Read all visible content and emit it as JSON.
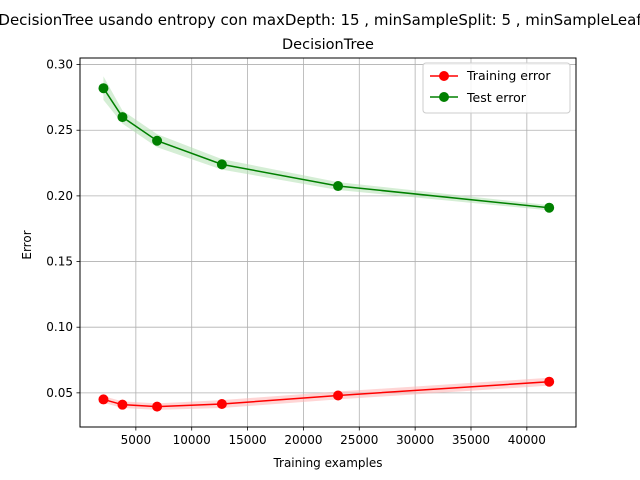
{
  "chart_data": {
    "type": "line",
    "suptitle": "DecisionTree usando entropy con maxDepth: 15 , minSampleSplit: 5 , minSampleLeaf",
    "title": "DecisionTree",
    "xlabel": "Training examples",
    "ylabel": "Error",
    "xlim": [
      0,
      44400
    ],
    "ylim": [
      0.024,
      0.305
    ],
    "xticks": [
      5000,
      10000,
      15000,
      20000,
      25000,
      30000,
      35000,
      40000
    ],
    "xtick_labels": [
      "5000",
      "10000",
      "15000",
      "20000",
      "25000",
      "30000",
      "35000",
      "40000"
    ],
    "yticks": [
      0.05,
      0.1,
      0.15,
      0.2,
      0.25,
      0.3
    ],
    "ytick_labels": [
      "0.05",
      "0.10",
      "0.15",
      "0.20",
      "0.25",
      "0.30"
    ],
    "grid": true,
    "legend_position": "top-right",
    "x": [
      2100,
      3800,
      6900,
      12700,
      23100,
      42000
    ],
    "series": [
      {
        "name": "Training error",
        "color": "#ff0000",
        "band_color": "#ffb3b3",
        "values": [
          0.045,
          0.041,
          0.0395,
          0.0415,
          0.048,
          0.0585
        ],
        "band": [
          0.0025,
          0.0025,
          0.0025,
          0.003,
          0.003,
          0.003
        ]
      },
      {
        "name": "Test error",
        "color": "#008000",
        "band_color": "#b3e0b3",
        "values": [
          0.282,
          0.26,
          0.242,
          0.224,
          0.2075,
          0.191
        ],
        "band": [
          0.009,
          0.005,
          0.005,
          0.004,
          0.003,
          0.002
        ]
      }
    ]
  }
}
